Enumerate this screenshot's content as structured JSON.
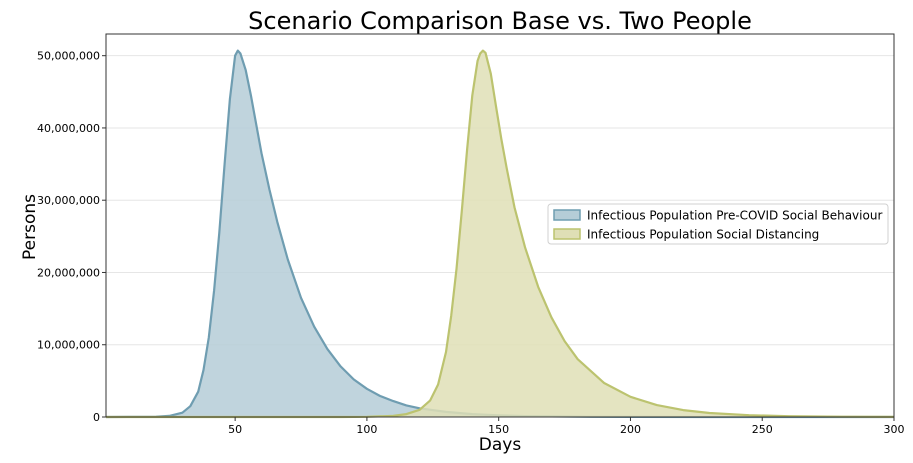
{
  "chart_data": {
    "type": "area",
    "title": "Scenario Comparison Base vs. Two People",
    "xlabel": "Days",
    "ylabel": "Persons",
    "xlim": [
      1,
      300
    ],
    "ylim": [
      0,
      53000000
    ],
    "xticks": [
      50,
      100,
      150,
      200,
      250,
      300
    ],
    "xtick_labels": [
      "50",
      "100",
      "150",
      "200",
      "250",
      "300"
    ],
    "yticks": [
      0,
      10000000,
      20000000,
      30000000,
      40000000,
      50000000
    ],
    "ytick_labels": [
      "0",
      "10,000,000",
      "20,000,000",
      "30,000,000",
      "40,000,000",
      "50,000,000"
    ],
    "grid": true,
    "legend_position": "center-right",
    "series": [
      {
        "name": "Infectious Population Pre-COVID Social Behaviour",
        "color": "#6f9db1",
        "fill": "#b5cdd7",
        "x": [
          1,
          20,
          25,
          30,
          33,
          36,
          38,
          40,
          42,
          44,
          46,
          48,
          50,
          51,
          52,
          54,
          56,
          58,
          60,
          63,
          66,
          70,
          75,
          80,
          85,
          90,
          95,
          100,
          105,
          110,
          115,
          120,
          130,
          140,
          150,
          160,
          170,
          185,
          200,
          230,
          260,
          300
        ],
        "y": [
          0,
          40000,
          150000,
          600000,
          1500000,
          3500000,
          6500000,
          11000000,
          17500000,
          25500000,
          35000000,
          44000000,
          50000000,
          50700000,
          50300000,
          48000000,
          44500000,
          40500000,
          36500000,
          31500000,
          27000000,
          21800000,
          16500000,
          12500000,
          9400000,
          7000000,
          5200000,
          3900000,
          2900000,
          2200000,
          1600000,
          1200000,
          700000,
          400000,
          230000,
          130000,
          80000,
          30000,
          10000,
          2000,
          500,
          0
        ]
      },
      {
        "name": "Infectious Population Social Distancing",
        "color": "#bcc36f",
        "fill": "#dfdfb6",
        "x": [
          1,
          90,
          100,
          110,
          115,
          120,
          124,
          127,
          130,
          132,
          134,
          136,
          138,
          140,
          142,
          143,
          144,
          145,
          147,
          149,
          151,
          153,
          156,
          160,
          165,
          170,
          175,
          180,
          190,
          200,
          210,
          220,
          230,
          245,
          260,
          280,
          300
        ],
        "y": [
          0,
          5000,
          30000,
          150000,
          400000,
          1000000,
          2300000,
          4500000,
          9000000,
          14000000,
          20500000,
          28500000,
          37000000,
          44500000,
          49300000,
          50300000,
          50700000,
          50400000,
          47500000,
          43000000,
          38500000,
          34500000,
          29000000,
          23500000,
          18000000,
          13800000,
          10500000,
          8000000,
          4700000,
          2800000,
          1650000,
          950000,
          550000,
          250000,
          110000,
          40000,
          10000
        ]
      }
    ]
  }
}
